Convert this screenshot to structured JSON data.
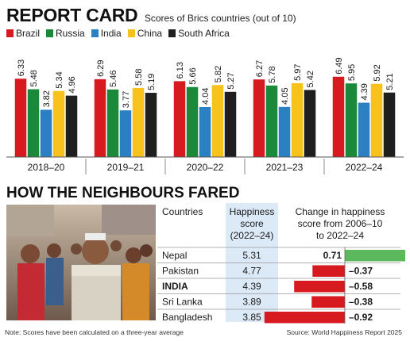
{
  "header": {
    "title": "REPORT CARD",
    "subtitle": "Scores of Brics countries (out of 10)"
  },
  "chart_data": [
    {
      "type": "bar",
      "title": "REPORT CARD",
      "subtitle": "Scores of Brics countries (out of 10)",
      "categories": [
        "2018–20",
        "2019–21",
        "2020–22",
        "2021–23",
        "2022–24"
      ],
      "series": [
        {
          "name": "Brazil",
          "color": "#d71920",
          "values": [
            6.33,
            6.29,
            6.13,
            6.27,
            6.49
          ]
        },
        {
          "name": "Russia",
          "color": "#1a8a3a",
          "values": [
            5.48,
            5.46,
            5.66,
            5.78,
            5.95
          ]
        },
        {
          "name": "India",
          "color": "#2b7fc3",
          "values": [
            3.82,
            3.77,
            4.04,
            4.05,
            4.39
          ]
        },
        {
          "name": "China",
          "color": "#f7c21b",
          "values": [
            5.34,
            5.58,
            5.82,
            5.97,
            5.92
          ]
        },
        {
          "name": "South Africa",
          "color": "#1f1f1f",
          "values": [
            4.96,
            5.19,
            5.27,
            5.42,
            5.21
          ]
        }
      ],
      "legend_position": "top-left",
      "grid": false
    },
    {
      "type": "table",
      "title": "HOW THE NEIGHBOURS FARED",
      "columns": [
        "Countries",
        "Happiness score (2022–24)",
        "Change in happiness score from 2006–10 to 2022–24"
      ],
      "rows": [
        {
          "country": "Nepal",
          "score": "5.31",
          "change": 0.71,
          "change_label": "0.71",
          "highlight": false
        },
        {
          "country": "Pakistan",
          "score": "4.77",
          "change": -0.37,
          "change_label": "–0.37",
          "highlight": false
        },
        {
          "country": "INDIA",
          "score": "4.39",
          "change": -0.58,
          "change_label": "–0.58",
          "highlight": true
        },
        {
          "country": "Sri Lanka",
          "score": "3.89",
          "change": -0.38,
          "change_label": "–0.38",
          "highlight": false
        },
        {
          "country": "Bangladesh",
          "score": "3.85",
          "change": -0.92,
          "change_label": "–0.92",
          "highlight": false
        }
      ],
      "positive_color": "#5cb85c",
      "negative_color": "#d71920"
    }
  ],
  "table_headers": {
    "countries": "Countries",
    "score_lines": [
      "Happiness",
      "score",
      "(2022–24)"
    ],
    "change_lines": [
      "Change in happiness",
      "score from 2006–10",
      "to 2022–24"
    ]
  },
  "section_title": "HOW THE NEIGHBOURS FARED",
  "footer": {
    "note": "Note: Scores have been calculated on a three-year average",
    "source": "Source: World Happiness Report 2025"
  }
}
